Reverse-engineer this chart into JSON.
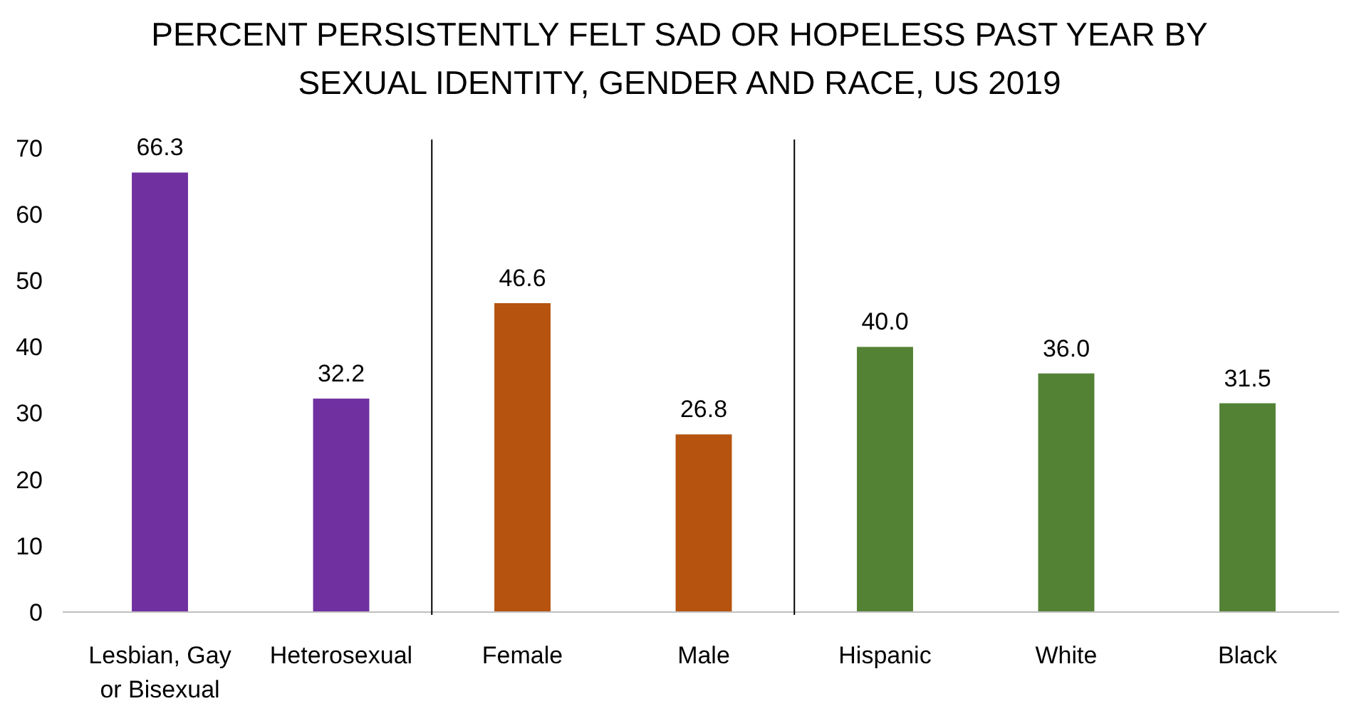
{
  "chart_data": {
    "type": "bar",
    "title": "PERCENT PERSISTENTLY FELT SAD OR HOPELESS PAST YEAR BY SEXUAL IDENTITY, GENDER AND RACE, US 2019",
    "categories": [
      "Lesbian, Gay or Bisexual",
      "Heterosexual",
      "Female",
      "Male",
      "Hispanic",
      "White",
      "Black"
    ],
    "values": [
      66.3,
      32.2,
      46.6,
      26.8,
      40.0,
      36.0,
      31.5
    ],
    "colors": [
      "#7030a0",
      "#7030a0",
      "#b5530f",
      "#b5530f",
      "#548235",
      "#548235",
      "#548235"
    ],
    "value_labels": [
      "66.3",
      "32.2",
      "46.6",
      "26.8",
      "40.0",
      "36.0",
      "31.5"
    ],
    "ylim": [
      0,
      70
    ],
    "yticks": [
      0,
      10,
      20,
      30,
      40,
      50,
      60,
      70
    ],
    "grid": false
  }
}
